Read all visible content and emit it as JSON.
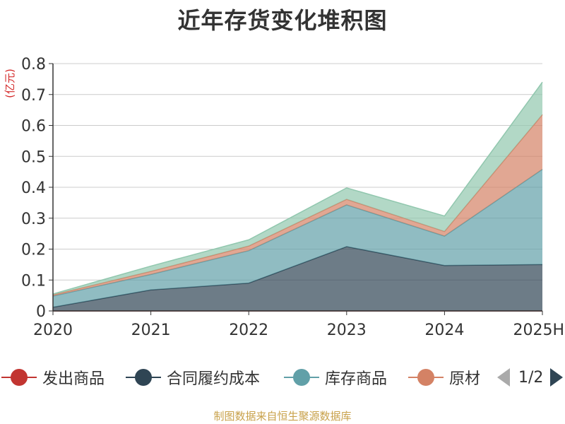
{
  "title": "近年存货变化堆积图",
  "unit": "(亿元)",
  "source": "制图数据来自恒生聚源数据库",
  "pager": {
    "text": "1/2"
  },
  "legend": [
    {
      "label": "发出商品",
      "color": "#c23531"
    },
    {
      "label": "合同履约成本",
      "color": "#2f4554"
    },
    {
      "label": "库存商品",
      "color": "#61a0a8"
    },
    {
      "label": "原材",
      "color": "#d48265"
    }
  ],
  "chart_data": {
    "type": "area",
    "stacked": true,
    "title": "近年存货变化堆积图",
    "ylabel": "(亿元)",
    "xlabel": "",
    "x": [
      "2020",
      "2021",
      "2022",
      "2023",
      "2024",
      "2025H"
    ],
    "y_ticks": [
      "0",
      "0.1",
      "0.2",
      "0.3",
      "0.4",
      "0.5",
      "0.6",
      "0.7",
      "0.8"
    ],
    "ylim": [
      0,
      0.8
    ],
    "grid": true,
    "legend_position": "bottom",
    "series": [
      {
        "name": "发出商品",
        "color": "#c23531",
        "values": [
          0,
          0,
          0,
          0,
          0,
          0
        ]
      },
      {
        "name": "合同履约成本",
        "color": "#2f4554",
        "values": [
          0.012,
          0.068,
          0.09,
          0.208,
          0.147,
          0.15
        ]
      },
      {
        "name": "库存商品",
        "color": "#61a0a8",
        "values": [
          0.036,
          0.05,
          0.105,
          0.135,
          0.095,
          0.308
        ]
      },
      {
        "name": "原材",
        "color": "#d48265",
        "values": [
          0.004,
          0.01,
          0.015,
          0.018,
          0.015,
          0.177
        ]
      },
      {
        "color": "#91c7ae",
        "values": [
          0.003,
          0.017,
          0.02,
          0.037,
          0.05,
          0.105
        ]
      }
    ]
  }
}
